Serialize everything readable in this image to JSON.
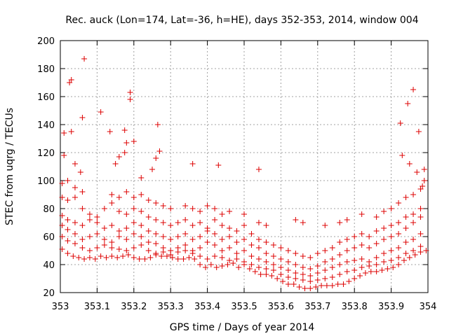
{
  "chart_data": {
    "type": "scatter",
    "title": "Rec. auck (Lon=174, Lat=-36, h=HE), days 352-353, 2014, window 004",
    "xlabel": "GPS time / Days of year 2014",
    "ylabel": "STEC from uqrg / TECUs",
    "xlim": [
      353,
      354
    ],
    "ylim": [
      20,
      200
    ],
    "xticks": [
      353,
      353.1,
      353.2,
      353.3,
      353.4,
      353.5,
      353.6,
      353.7,
      353.8,
      353.9,
      354
    ],
    "xtick_labels": [
      "353",
      "353.1",
      "353.2",
      "353.3",
      "353.4",
      "353.5",
      "353.6",
      "353.7",
      "353.8",
      "353.9",
      "354"
    ],
    "yticks": [
      20,
      40,
      60,
      80,
      100,
      120,
      140,
      160,
      180,
      200
    ],
    "ytick_labels": [
      "20",
      "40",
      "60",
      "80",
      "100",
      "120",
      "140",
      "160",
      "180",
      "200"
    ],
    "grid": true,
    "marker": "plus",
    "color": "#dd0000",
    "points": [
      [
        353.005,
        51
      ],
      [
        353.02,
        48
      ],
      [
        353.035,
        46
      ],
      [
        353.05,
        45
      ],
      [
        353.065,
        44
      ],
      [
        353.08,
        45
      ],
      [
        353.095,
        44
      ],
      [
        353.11,
        46
      ],
      [
        353.125,
        45
      ],
      [
        353.14,
        46
      ],
      [
        353.155,
        45
      ],
      [
        353.17,
        46
      ],
      [
        353.185,
        47
      ],
      [
        353.2,
        45
      ],
      [
        353.215,
        44
      ],
      [
        353.23,
        44
      ],
      [
        353.245,
        45
      ],
      [
        353.26,
        47
      ],
      [
        353.275,
        46
      ],
      [
        353.29,
        46
      ],
      [
        353.305,
        45
      ],
      [
        353.32,
        44
      ],
      [
        353.335,
        44
      ],
      [
        353.35,
        45
      ],
      [
        353.365,
        44
      ],
      [
        353.38,
        40
      ],
      [
        353.395,
        38
      ],
      [
        353.41,
        40
      ],
      [
        353.425,
        38
      ],
      [
        353.44,
        39
      ],
      [
        353.455,
        40
      ],
      [
        353.47,
        41
      ],
      [
        353.485,
        38
      ],
      [
        353.5,
        40
      ],
      [
        353.515,
        37
      ],
      [
        353.53,
        35
      ],
      [
        353.545,
        33
      ],
      [
        353.56,
        33
      ],
      [
        353.575,
        32
      ],
      [
        353.59,
        30
      ],
      [
        353.605,
        28
      ],
      [
        353.62,
        26
      ],
      [
        353.635,
        26
      ],
      [
        353.65,
        24
      ],
      [
        353.665,
        23
      ],
      [
        353.68,
        23
      ],
      [
        353.695,
        24
      ],
      [
        353.71,
        25
      ],
      [
        353.725,
        25
      ],
      [
        353.74,
        25
      ],
      [
        353.755,
        26
      ],
      [
        353.77,
        26
      ],
      [
        353.785,
        28
      ],
      [
        353.8,
        30
      ],
      [
        353.815,
        32
      ],
      [
        353.83,
        34
      ],
      [
        353.845,
        35
      ],
      [
        353.86,
        35
      ],
      [
        353.875,
        36
      ],
      [
        353.89,
        37
      ],
      [
        353.905,
        38
      ],
      [
        353.92,
        40
      ],
      [
        353.935,
        43
      ],
      [
        353.95,
        45
      ],
      [
        353.965,
        47
      ],
      [
        353.98,
        49
      ],
      [
        353.995,
        50
      ],
      [
        353.005,
        60
      ],
      [
        353.02,
        57
      ],
      [
        353.04,
        55
      ],
      [
        353.06,
        52
      ],
      [
        353.08,
        50
      ],
      [
        353.1,
        52
      ],
      [
        353.12,
        54
      ],
      [
        353.14,
        52
      ],
      [
        353.16,
        51
      ],
      [
        353.18,
        50
      ],
      [
        353.2,
        52
      ],
      [
        353.22,
        54
      ],
      [
        353.24,
        50
      ],
      [
        353.26,
        48
      ],
      [
        353.28,
        49
      ],
      [
        353.3,
        47
      ],
      [
        353.32,
        49
      ],
      [
        353.34,
        50
      ],
      [
        353.36,
        48
      ],
      [
        353.38,
        46
      ],
      [
        353.4,
        44
      ],
      [
        353.42,
        46
      ],
      [
        353.44,
        45
      ],
      [
        353.46,
        43
      ],
      [
        353.48,
        44
      ],
      [
        353.5,
        42
      ],
      [
        353.52,
        40
      ],
      [
        353.54,
        38
      ],
      [
        353.56,
        37
      ],
      [
        353.58,
        36
      ],
      [
        353.6,
        33
      ],
      [
        353.62,
        31
      ],
      [
        353.64,
        30
      ],
      [
        353.66,
        29
      ],
      [
        353.68,
        28
      ],
      [
        353.7,
        29
      ],
      [
        353.72,
        30
      ],
      [
        353.74,
        31
      ],
      [
        353.76,
        33
      ],
      [
        353.78,
        35
      ],
      [
        353.8,
        36
      ],
      [
        353.82,
        38
      ],
      [
        353.84,
        39
      ],
      [
        353.86,
        40
      ],
      [
        353.88,
        42
      ],
      [
        353.9,
        43
      ],
      [
        353.92,
        45
      ],
      [
        353.94,
        48
      ],
      [
        353.96,
        50
      ],
      [
        353.98,
        53
      ],
      [
        353.005,
        68
      ],
      [
        353.02,
        65
      ],
      [
        353.04,
        62
      ],
      [
        353.06,
        58
      ],
      [
        353.08,
        60
      ],
      [
        353.1,
        62
      ],
      [
        353.12,
        58
      ],
      [
        353.14,
        56
      ],
      [
        353.16,
        60
      ],
      [
        353.18,
        58
      ],
      [
        353.2,
        62
      ],
      [
        353.22,
        60
      ],
      [
        353.24,
        56
      ],
      [
        353.26,
        55
      ],
      [
        353.28,
        52
      ],
      [
        353.3,
        50
      ],
      [
        353.32,
        52
      ],
      [
        353.34,
        54
      ],
      [
        353.36,
        50
      ],
      [
        353.38,
        52
      ],
      [
        353.4,
        56
      ],
      [
        353.42,
        54
      ],
      [
        353.44,
        50
      ],
      [
        353.46,
        52
      ],
      [
        353.48,
        48
      ],
      [
        353.5,
        50
      ],
      [
        353.52,
        46
      ],
      [
        353.54,
        44
      ],
      [
        353.56,
        42
      ],
      [
        353.58,
        40
      ],
      [
        353.6,
        38
      ],
      [
        353.62,
        36
      ],
      [
        353.64,
        34
      ],
      [
        353.66,
        33
      ],
      [
        353.68,
        32
      ],
      [
        353.7,
        34
      ],
      [
        353.72,
        36
      ],
      [
        353.74,
        38
      ],
      [
        353.76,
        40
      ],
      [
        353.78,
        42
      ],
      [
        353.8,
        43
      ],
      [
        353.82,
        44
      ],
      [
        353.84,
        42
      ],
      [
        353.86,
        45
      ],
      [
        353.88,
        48
      ],
      [
        353.9,
        50
      ],
      [
        353.92,
        52
      ],
      [
        353.94,
        56
      ],
      [
        353.96,
        58
      ],
      [
        353.98,
        62
      ],
      [
        353.005,
        75
      ],
      [
        353.02,
        72
      ],
      [
        353.04,
        70
      ],
      [
        353.06,
        68
      ],
      [
        353.08,
        72
      ],
      [
        353.1,
        70
      ],
      [
        353.12,
        66
      ],
      [
        353.14,
        68
      ],
      [
        353.16,
        64
      ],
      [
        353.18,
        66
      ],
      [
        353.2,
        70
      ],
      [
        353.22,
        68
      ],
      [
        353.24,
        64
      ],
      [
        353.26,
        62
      ],
      [
        353.28,
        60
      ],
      [
        353.3,
        58
      ],
      [
        353.32,
        60
      ],
      [
        353.34,
        62
      ],
      [
        353.36,
        58
      ],
      [
        353.38,
        60
      ],
      [
        353.4,
        64
      ],
      [
        353.42,
        62
      ],
      [
        353.44,
        58
      ],
      [
        353.46,
        60
      ],
      [
        353.48,
        56
      ],
      [
        353.5,
        58
      ],
      [
        353.52,
        54
      ],
      [
        353.54,
        52
      ],
      [
        353.56,
        48
      ],
      [
        353.58,
        46
      ],
      [
        353.6,
        44
      ],
      [
        353.62,
        42
      ],
      [
        353.64,
        40
      ],
      [
        353.66,
        38
      ],
      [
        353.68,
        37
      ],
      [
        353.7,
        39
      ],
      [
        353.72,
        42
      ],
      [
        353.74,
        44
      ],
      [
        353.76,
        47
      ],
      [
        353.78,
        50
      ],
      [
        353.8,
        52
      ],
      [
        353.82,
        54
      ],
      [
        353.84,
        52
      ],
      [
        353.86,
        55
      ],
      [
        353.88,
        58
      ],
      [
        353.9,
        60
      ],
      [
        353.92,
        62
      ],
      [
        353.94,
        66
      ],
      [
        353.96,
        70
      ],
      [
        353.98,
        74
      ],
      [
        353.005,
        88
      ],
      [
        353.02,
        86
      ],
      [
        353.04,
        88
      ],
      [
        353.06,
        80
      ],
      [
        353.08,
        76
      ],
      [
        353.1,
        74
      ],
      [
        353.12,
        80
      ],
      [
        353.14,
        84
      ],
      [
        353.16,
        78
      ],
      [
        353.18,
        76
      ],
      [
        353.2,
        80
      ],
      [
        353.22,
        78
      ],
      [
        353.24,
        74
      ],
      [
        353.26,
        72
      ],
      [
        353.28,
        70
      ],
      [
        353.3,
        68
      ],
      [
        353.32,
        70
      ],
      [
        353.34,
        72
      ],
      [
        353.36,
        68
      ],
      [
        353.38,
        70
      ],
      [
        353.4,
        66
      ],
      [
        353.42,
        72
      ],
      [
        353.44,
        68
      ],
      [
        353.46,
        66
      ],
      [
        353.48,
        64
      ],
      [
        353.5,
        68
      ],
      [
        353.52,
        62
      ],
      [
        353.54,
        58
      ],
      [
        353.56,
        56
      ],
      [
        353.58,
        54
      ],
      [
        353.6,
        52
      ],
      [
        353.62,
        50
      ],
      [
        353.64,
        48
      ],
      [
        353.66,
        46
      ],
      [
        353.68,
        45
      ],
      [
        353.7,
        48
      ],
      [
        353.72,
        50
      ],
      [
        353.74,
        52
      ],
      [
        353.76,
        56
      ],
      [
        353.78,
        58
      ],
      [
        353.8,
        60
      ],
      [
        353.82,
        62
      ],
      [
        353.84,
        60
      ],
      [
        353.86,
        64
      ],
      [
        353.88,
        66
      ],
      [
        353.9,
        68
      ],
      [
        353.92,
        70
      ],
      [
        353.94,
        74
      ],
      [
        353.96,
        76
      ],
      [
        353.98,
        80
      ],
      [
        353.005,
        98
      ],
      [
        353.02,
        100
      ],
      [
        353.04,
        95
      ],
      [
        353.06,
        92
      ],
      [
        353.14,
        90
      ],
      [
        353.16,
        88
      ],
      [
        353.18,
        92
      ],
      [
        353.2,
        88
      ],
      [
        353.22,
        90
      ],
      [
        353.24,
        86
      ],
      [
        353.26,
        84
      ],
      [
        353.28,
        82
      ],
      [
        353.3,
        80
      ],
      [
        353.34,
        82
      ],
      [
        353.36,
        80
      ],
      [
        353.38,
        78
      ],
      [
        353.4,
        82
      ],
      [
        353.42,
        80
      ],
      [
        353.44,
        76
      ],
      [
        353.46,
        78
      ],
      [
        353.5,
        76
      ],
      [
        353.54,
        70
      ],
      [
        353.56,
        68
      ],
      [
        353.64,
        72
      ],
      [
        353.66,
        70
      ],
      [
        353.72,
        68
      ],
      [
        353.76,
        70
      ],
      [
        353.78,
        72
      ],
      [
        353.82,
        76
      ],
      [
        353.86,
        74
      ],
      [
        353.88,
        78
      ],
      [
        353.9,
        80
      ],
      [
        353.92,
        84
      ],
      [
        353.94,
        88
      ],
      [
        353.96,
        90
      ],
      [
        353.98,
        94
      ],
      [
        353.01,
        118
      ],
      [
        353.03,
        135
      ],
      [
        353.04,
        112
      ],
      [
        353.055,
        106
      ],
      [
        353.06,
        145
      ],
      [
        353.15,
        112
      ],
      [
        353.16,
        117
      ],
      [
        353.175,
        120
      ],
      [
        353.18,
        127
      ],
      [
        353.2,
        128
      ],
      [
        353.22,
        102
      ],
      [
        353.25,
        108
      ],
      [
        353.26,
        116
      ],
      [
        353.27,
        121
      ],
      [
        353.36,
        112
      ],
      [
        353.43,
        111
      ],
      [
        353.54,
        108
      ],
      [
        353.93,
        118
      ],
      [
        353.95,
        112
      ],
      [
        353.97,
        106
      ],
      [
        353.99,
        100
      ],
      [
        353.985,
        96
      ],
      [
        353.025,
        170
      ],
      [
        353.03,
        172
      ],
      [
        353.065,
        187
      ],
      [
        353.19,
        163
      ],
      [
        353.19,
        158
      ],
      [
        353.265,
        140
      ],
      [
        353.175,
        136
      ],
      [
        353.135,
        135
      ],
      [
        353.11,
        149
      ],
      [
        353.01,
        134
      ],
      [
        353.945,
        155
      ],
      [
        353.96,
        165
      ],
      [
        353.925,
        141
      ],
      [
        353.975,
        135
      ],
      [
        353.99,
        108
      ]
    ]
  }
}
